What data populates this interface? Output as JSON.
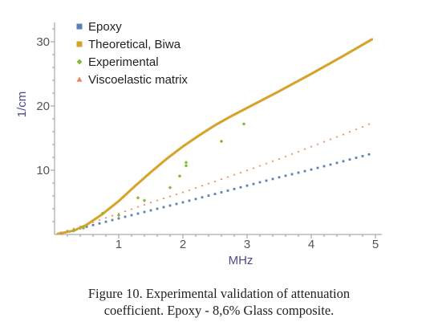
{
  "caption": {
    "line1": "Figure 10. Experimental validation of attenuation",
    "line2": "coefficient. Epoxy - 8,6% Glass composite."
  },
  "chart_data": {
    "type": "scatter",
    "title": "",
    "xlabel": "MHz",
    "ylabel": "1/cm",
    "xlim": [
      0,
      5
    ],
    "ylim": [
      0,
      32
    ],
    "xticks": [
      1,
      2,
      3,
      4,
      5
    ],
    "yticks": [
      10,
      20,
      30
    ],
    "grid": false,
    "legend_position": "top-left",
    "series": [
      {
        "name": "Epoxy",
        "marker": "square",
        "color": "#5b7fb8",
        "x": [
          0.1,
          0.5,
          1.0,
          1.5,
          2.0,
          2.5,
          3.0,
          3.5,
          4.0,
          4.5,
          4.95
        ],
        "y": [
          0.25,
          1.2,
          2.5,
          3.75,
          5.0,
          6.3,
          7.6,
          8.9,
          10.1,
          11.4,
          12.6
        ]
      },
      {
        "name": "Theoretical, Biwa",
        "marker": "square",
        "color": "#d6a32a",
        "x": [
          0.05,
          0.3,
          0.5,
          0.75,
          1.0,
          1.25,
          1.5,
          1.75,
          2.0,
          2.25,
          2.5,
          2.75,
          3.0,
          3.5,
          4.0,
          4.5,
          4.95
        ],
        "y": [
          0.1,
          0.6,
          1.5,
          3.2,
          5.2,
          7.5,
          9.7,
          11.8,
          13.7,
          15.4,
          17.0,
          18.4,
          19.7,
          22.3,
          25.0,
          27.8,
          30.4
        ]
      },
      {
        "name": "Experimental",
        "marker": "diamond",
        "color": "#8ab83a",
        "x": [
          0.3,
          0.45,
          0.75,
          1.0,
          1.3,
          1.4,
          1.8,
          1.95,
          2.05,
          2.05,
          2.6,
          2.95
        ],
        "y": [
          0.6,
          1.0,
          3.3,
          3.0,
          5.7,
          5.3,
          7.3,
          9.1,
          10.7,
          11.2,
          14.5,
          17.2
        ]
      },
      {
        "name": "Viscoelastic matrix",
        "marker": "triangle",
        "color": "#e58a57",
        "x": [
          0.1,
          0.5,
          1.0,
          1.5,
          2.0,
          2.5,
          3.0,
          3.5,
          4.0,
          4.5,
          4.95
        ],
        "y": [
          0.3,
          1.6,
          3.3,
          5.0,
          6.6,
          8.3,
          10.0,
          11.8,
          13.7,
          15.6,
          17.4
        ]
      }
    ]
  }
}
